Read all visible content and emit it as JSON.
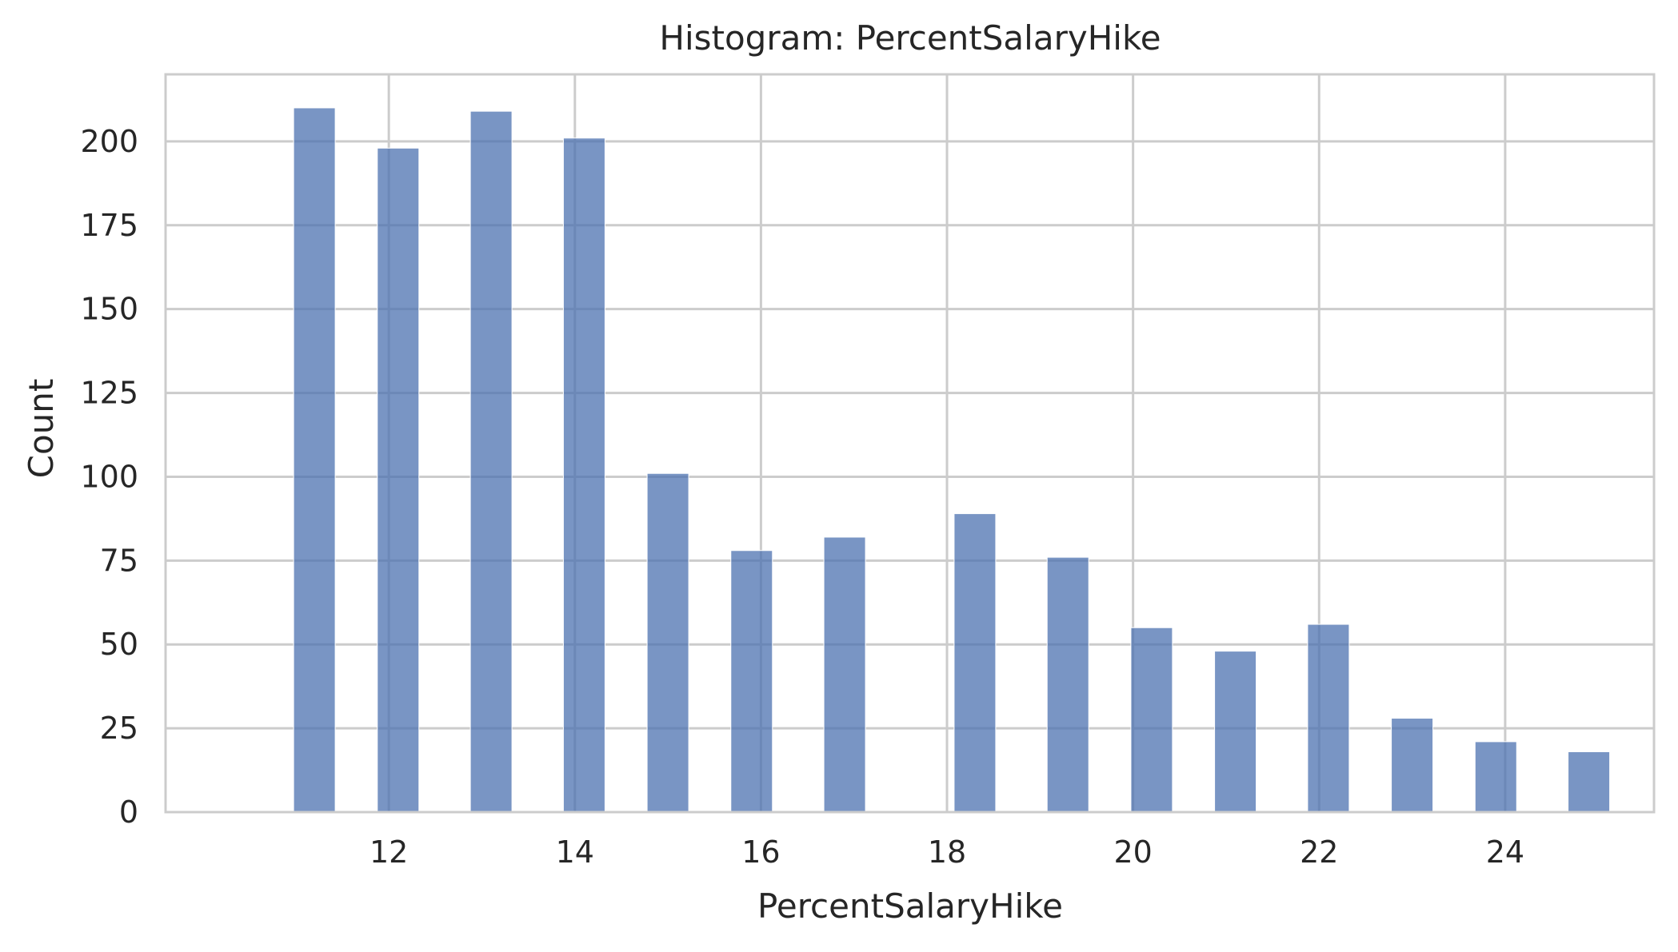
{
  "chart_data": {
    "type": "bar",
    "title": "Histogram: PercentSalaryHike",
    "xlabel": "PercentSalaryHike",
    "ylabel": "Count",
    "bin_centers": [
      11.2,
      12.1,
      13.1,
      14.1,
      15.0,
      15.9,
      16.9,
      18.3,
      19.3,
      20.2,
      21.1,
      22.1,
      23.0,
      23.9,
      24.9
    ],
    "values": [
      210,
      198,
      209,
      201,
      101,
      78,
      82,
      89,
      76,
      55,
      48,
      56,
      28,
      21,
      18
    ],
    "xlim": [
      9.6,
      25.6
    ],
    "ylim": [
      0,
      220
    ],
    "xticks": [
      "12",
      "14",
      "16",
      "18",
      "20",
      "22",
      "24"
    ],
    "yticks": [
      "0",
      "25",
      "50",
      "75",
      "100",
      "125",
      "150",
      "175",
      "200"
    ],
    "bar_color": "#4c72b0",
    "grid": true
  }
}
